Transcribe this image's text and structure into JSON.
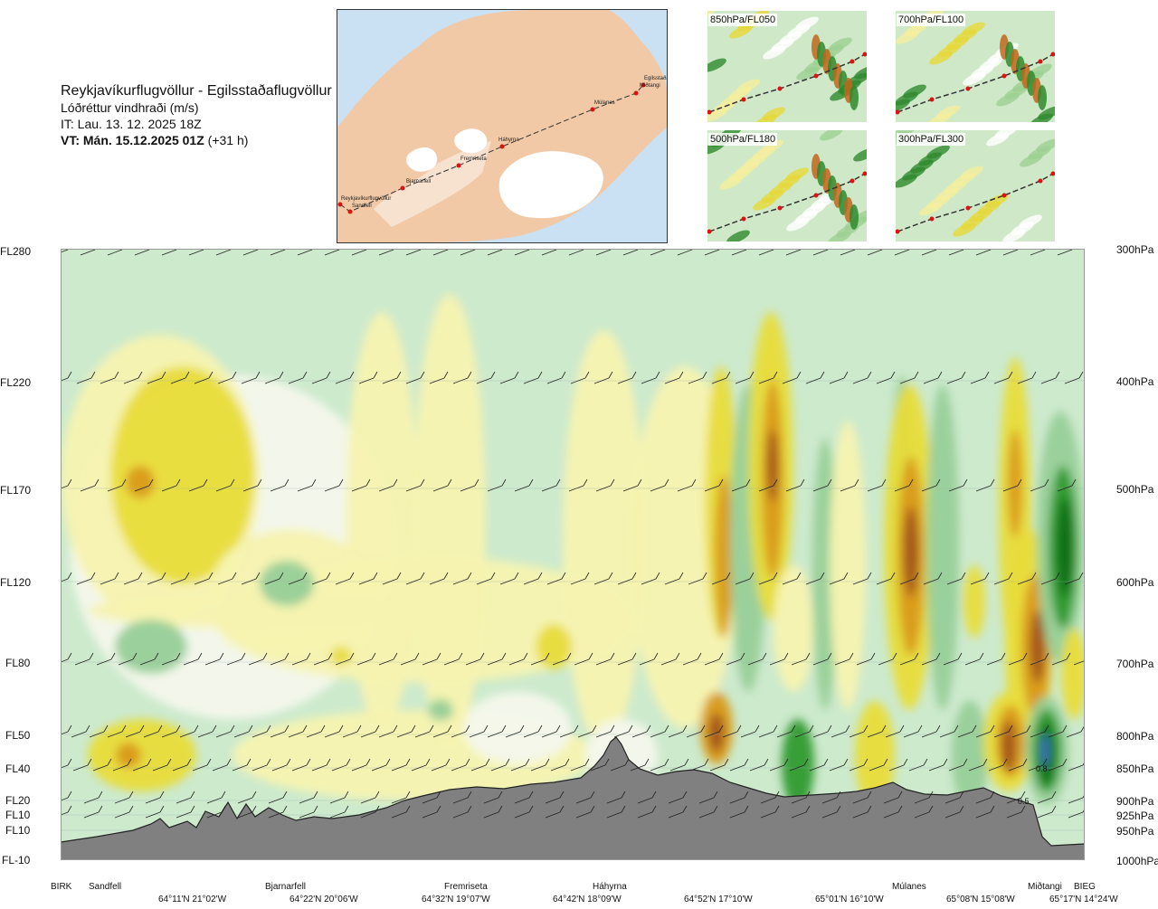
{
  "header": {
    "route": "Reykjavíkurflugvöllur - Egilsstaðaflugvöllur",
    "parameter": "Lóðréttur vindhraði (m/s)",
    "issue_time": "IT: Lau. 13. 12. 2025 18Z",
    "valid_time": "VT: Mán. 15.12.2025 01Z",
    "lead_time": "(+31 h)"
  },
  "map": {
    "waypoints": [
      "Reykjavíkurflugvöllur",
      "Sandfell",
      "Bjarnarfell",
      "Fremriseta",
      "Háhyrna",
      "Múlanes",
      "Miðtangi",
      "Egilsstaðaflugvöllur"
    ],
    "colors": {
      "sea": "#c9e1f2",
      "land": "#f1c9a6",
      "land_light": "#f7e2d0",
      "glacier": "#ffffff",
      "route": "#333333",
      "waypoint": "#dd1111"
    }
  },
  "thumbnails": [
    {
      "label": "850hPa/FL050"
    },
    {
      "label": "700hPa/FL100"
    },
    {
      "label": "500hPa/FL180"
    },
    {
      "label": "300hPa/FL300"
    }
  ],
  "axes": {
    "flight_levels": [
      "FL280",
      "FL220",
      "FL170",
      "FL120",
      "FL80",
      "FL50",
      "FL40",
      "FL20",
      "FL10",
      "FL10",
      "FL-10"
    ],
    "pressure_levels": [
      "300hPa",
      "400hPa",
      "500hPa",
      "600hPa",
      "700hPa",
      "800hPa",
      "850hPa",
      "900hPa",
      "925hPa",
      "950hPa",
      "1000hPa"
    ],
    "waypoint_labels": [
      "BIRK",
      "Sandfell",
      "Bjarnarfell",
      "Fremriseta",
      "Háhyrna",
      "Múlanes",
      "Miðtangi",
      "BIEG"
    ],
    "coordinate_labels": [
      "64°11'N 21°02'W",
      "64°22'N 20°06'W",
      "64°32'N 19°07'W",
      "64°42'N 18°09'W",
      "64°52'N 17°10'W",
      "65°01'N 16°10'W",
      "65°08'N 15°08'W",
      "65°17'N 14°24'W"
    ]
  },
  "chart_data": {
    "type": "heatmap",
    "title": "Lóðréttur vindhraði (m/s)",
    "x_waypoints": [
      "BIRK",
      "Sandfell",
      "Bjarnarfell",
      "Fremriseta",
      "Háhyrna",
      "Múlanes",
      "Miðtangi",
      "BIEG"
    ],
    "y_pressure_hpa": [
      300,
      400,
      500,
      600,
      700,
      800,
      850,
      900,
      925,
      950,
      1000
    ],
    "y_flight_levels": [
      "FL280",
      "FL220",
      "FL170",
      "FL120",
      "FL80",
      "FL50",
      "FL40",
      "FL20",
      "FL10",
      "FL10",
      "FL-10"
    ],
    "colors": {
      "downdraft_strong": "#a0521e",
      "downdraft_moderate": "#d99a18",
      "downdraft_weak": "#e8dc3a",
      "downdraft_slight": "#f7f3b0",
      "neutral": "#f4f8ec",
      "updraft_slight": "#cdeacd",
      "updraft_weak": "#97cf98",
      "updraft_moderate": "#2e9a2e",
      "updraft_strong": "#0c6e16",
      "updraft_extreme": "#3e6fc0",
      "terrain": "#808080"
    },
    "annotations": [
      "0.8",
      "0.5"
    ]
  }
}
